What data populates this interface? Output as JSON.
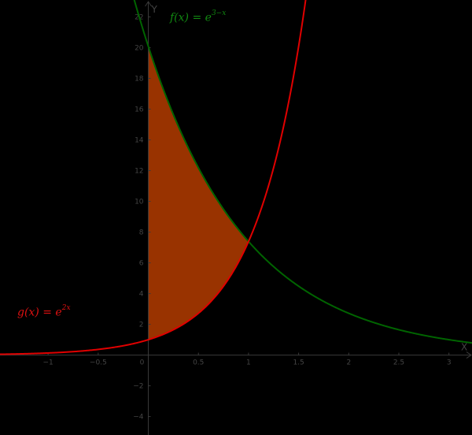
{
  "chart_data": {
    "type": "area",
    "title": "",
    "xlabel": "X",
    "ylabel": "Y",
    "xlim": [
      -1.48,
      3.23
    ],
    "ylim": [
      -5.2,
      23.1
    ],
    "grid": false,
    "x_ticks": [
      -1,
      -0.5,
      0,
      0.5,
      1,
      1.5,
      2,
      2.5,
      3
    ],
    "x_tick_labels": [
      "−1",
      "−0.5",
      "0",
      "0.5",
      "1",
      "1.5",
      "2",
      "2.5",
      "3"
    ],
    "y_ticks": [
      -4,
      -2,
      2,
      4,
      6,
      8,
      10,
      12,
      14,
      16,
      18,
      20,
      22
    ],
    "y_tick_labels": [
      "−4",
      "−2",
      "2",
      "4",
      "6",
      "8",
      "10",
      "12",
      "14",
      "16",
      "18",
      "20",
      "22"
    ],
    "series": [
      {
        "name": "f",
        "expression": "f(x) = e^(3−x)",
        "color": "#006400",
        "samples": {
          "x": [
            0,
            0.5,
            1,
            1.5,
            2,
            2.5,
            3
          ],
          "y": [
            20.09,
            12.18,
            7.39,
            4.48,
            2.72,
            1.65,
            1.0
          ]
        }
      },
      {
        "name": "g",
        "expression": "g(x) = e^(2x)",
        "color": "#e00000",
        "samples": {
          "x": [
            -1,
            -0.5,
            0,
            0.5,
            1,
            1.5
          ],
          "y": [
            0.14,
            0.37,
            1.0,
            2.72,
            7.39,
            20.09
          ]
        }
      }
    ],
    "shaded_region": {
      "between": [
        "f",
        "g"
      ],
      "x_from": 0,
      "x_to": 1,
      "color": "#993300",
      "description": "Region between f and g from x=0 to intersection x=1"
    },
    "intersection": {
      "x": 1,
      "y": 7.389
    }
  },
  "labels": {
    "f_label": {
      "name": "f(x)",
      "eq": " = ",
      "base": "e",
      "exp": "3−x"
    },
    "g_label": {
      "name": "g(x)",
      "eq": " = ",
      "base": "e",
      "exp": "2x"
    }
  },
  "colors": {
    "background": "#000000",
    "axis": "#3a3a3a",
    "f": "#006400",
    "g": "#e00000",
    "fill": "#993300"
  }
}
